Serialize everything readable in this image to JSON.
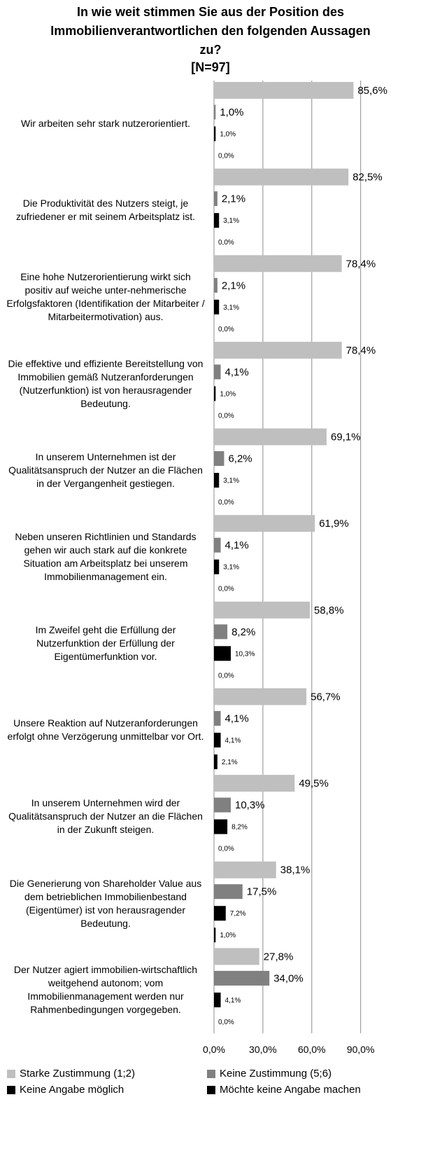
{
  "chart_data": {
    "type": "hbar",
    "title": "In wie weit stimmen Sie aus der Position des Immobilienverantwortlichen den folgenden Aussagen zu?",
    "subtitle": "[N=97]",
    "categories": [
      "Wir arbeiten sehr stark nutzerorientiert.",
      "Die Produktivität des Nutzers steigt, je zufriedener er mit seinem Arbeitsplatz ist.",
      "Eine hohe Nutzerorientierung wirkt sich positiv auf weiche unter-nehmerische Erfolgsfaktoren (Identifikation der Mitarbeiter / Mitarbeitermotivation) aus.",
      "Die effektive und effiziente Bereitstellung von Immobilien gemäß Nutzeranforderungen (Nutzerfunktion) ist von herausragender Bedeutung.",
      "In unserem Unternehmen ist der Qualitätsanspruch der Nutzer an die Flächen in der Vergangenheit gestiegen.",
      "Neben unseren Richtlinien und Standards gehen wir auch stark auf die konkrete Situation am Arbeitsplatz bei unserem Immobilienmanagement ein.",
      "Im Zweifel geht die Erfüllung der Nutzerfunktion der Erfüllung der Eigentümerfunktion vor.",
      "Unsere Reaktion auf Nutzeranforderungen erfolgt ohne Verzögerung unmittelbar vor Ort.",
      "In unserem Unternehmen wird der Qualitätsanspruch der Nutzer an die Flächen in der Zukunft steigen.",
      "Die Generierung von Shareholder Value aus dem betrieblichen Immobilienbestand (Eigentümer) ist von herausragender Bedeutung.",
      "Der Nutzer agiert immobilien-wirtschaftlich weitgehend autonom; vom Immobilienmanagement werden nur Rahmenbedingungen vorgegeben."
    ],
    "series": [
      {
        "name": "Starke Zustimmung (1;2)",
        "color": "#bfbfbf",
        "values": [
          85.6,
          82.5,
          78.4,
          78.4,
          69.1,
          61.9,
          58.8,
          56.7,
          49.5,
          38.1,
          27.8
        ],
        "value_labels": [
          "85,6%",
          "82,5%",
          "78,4%",
          "78,4%",
          "69,1%",
          "61,9%",
          "58,8%",
          "56,7%",
          "49,5%",
          "38,1%",
          "27,8%"
        ]
      },
      {
        "name": "Keine Zustimmung (5;6)",
        "color": "#808080",
        "values": [
          1.0,
          2.1,
          2.1,
          4.1,
          6.2,
          4.1,
          8.2,
          4.1,
          10.3,
          17.5,
          34.0
        ],
        "value_labels": [
          "1,0%",
          "2,1%",
          "2,1%",
          "4,1%",
          "6,2%",
          "4,1%",
          "8,2%",
          "4,1%",
          "10,3%",
          "17,5%",
          "34,0%"
        ]
      },
      {
        "name": "Keine Angabe möglich",
        "color": "#000000",
        "values": [
          1.0,
          3.1,
          3.1,
          1.0,
          3.1,
          3.1,
          10.3,
          4.1,
          8.2,
          7.2,
          4.1
        ],
        "value_labels": [
          "1,0%",
          "3,1%",
          "3,1%",
          "1,0%",
          "3,1%",
          "3,1%",
          "10,3%",
          "4,1%",
          "8,2%",
          "7,2%",
          "4,1%"
        ]
      },
      {
        "name": "Möchte keine Angabe machen",
        "color": "#000000",
        "values": [
          0.0,
          0.0,
          0.0,
          0.0,
          0.0,
          0.0,
          0.0,
          2.1,
          0.0,
          1.0,
          0.0
        ],
        "value_labels": [
          "0,0%",
          "0,0%",
          "0,0%",
          "0,0%",
          "0,0%",
          "0,0%",
          "0,0%",
          "2,1%",
          "0,0%",
          "1,0%",
          "0,0%"
        ]
      }
    ],
    "xlim": [
      0,
      100
    ],
    "xticks": [
      {
        "value": 0,
        "label": "0,0%"
      },
      {
        "value": 30,
        "label": "30,0%"
      },
      {
        "value": 60,
        "label": "60,0%"
      },
      {
        "value": 90,
        "label": "90,0%"
      }
    ],
    "grid": true
  }
}
